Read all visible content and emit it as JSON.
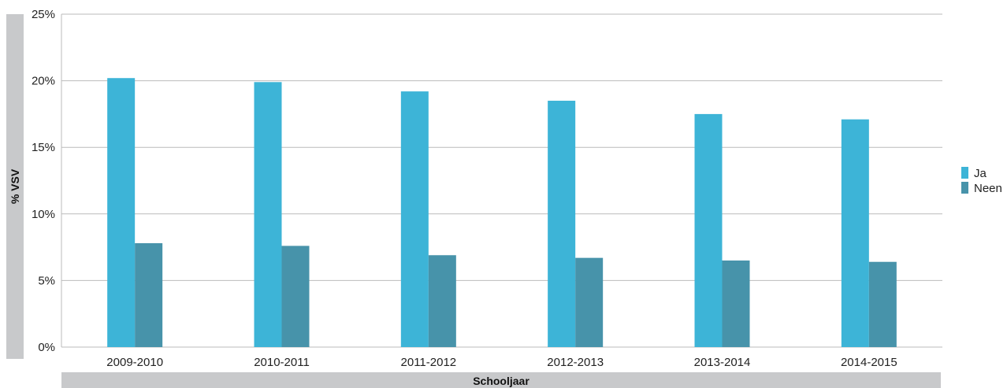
{
  "chart_data": {
    "type": "bar",
    "title": "",
    "xlabel": "Schooljaar",
    "ylabel": "% VSV",
    "categories": [
      "2009-2010",
      "2010-2011",
      "2011-2012",
      "2012-2013",
      "2013-2014",
      "2014-2015"
    ],
    "series": [
      {
        "name": "Ja",
        "color": "#3db4d7",
        "values": [
          20.2,
          19.9,
          19.2,
          18.5,
          17.5,
          17.1
        ]
      },
      {
        "name": "Neen",
        "color": "#4793aa",
        "values": [
          7.8,
          7.6,
          6.9,
          6.7,
          6.5,
          6.4
        ]
      }
    ],
    "ylim": [
      0,
      25
    ],
    "yticks": [
      0,
      5,
      10,
      15,
      20,
      25
    ],
    "ytick_labels": [
      "0%",
      "5%",
      "10%",
      "15%",
      "20%",
      "25%"
    ],
    "grid": true,
    "legend_position": "right",
    "axis_band_color": "#c8c9cb"
  }
}
